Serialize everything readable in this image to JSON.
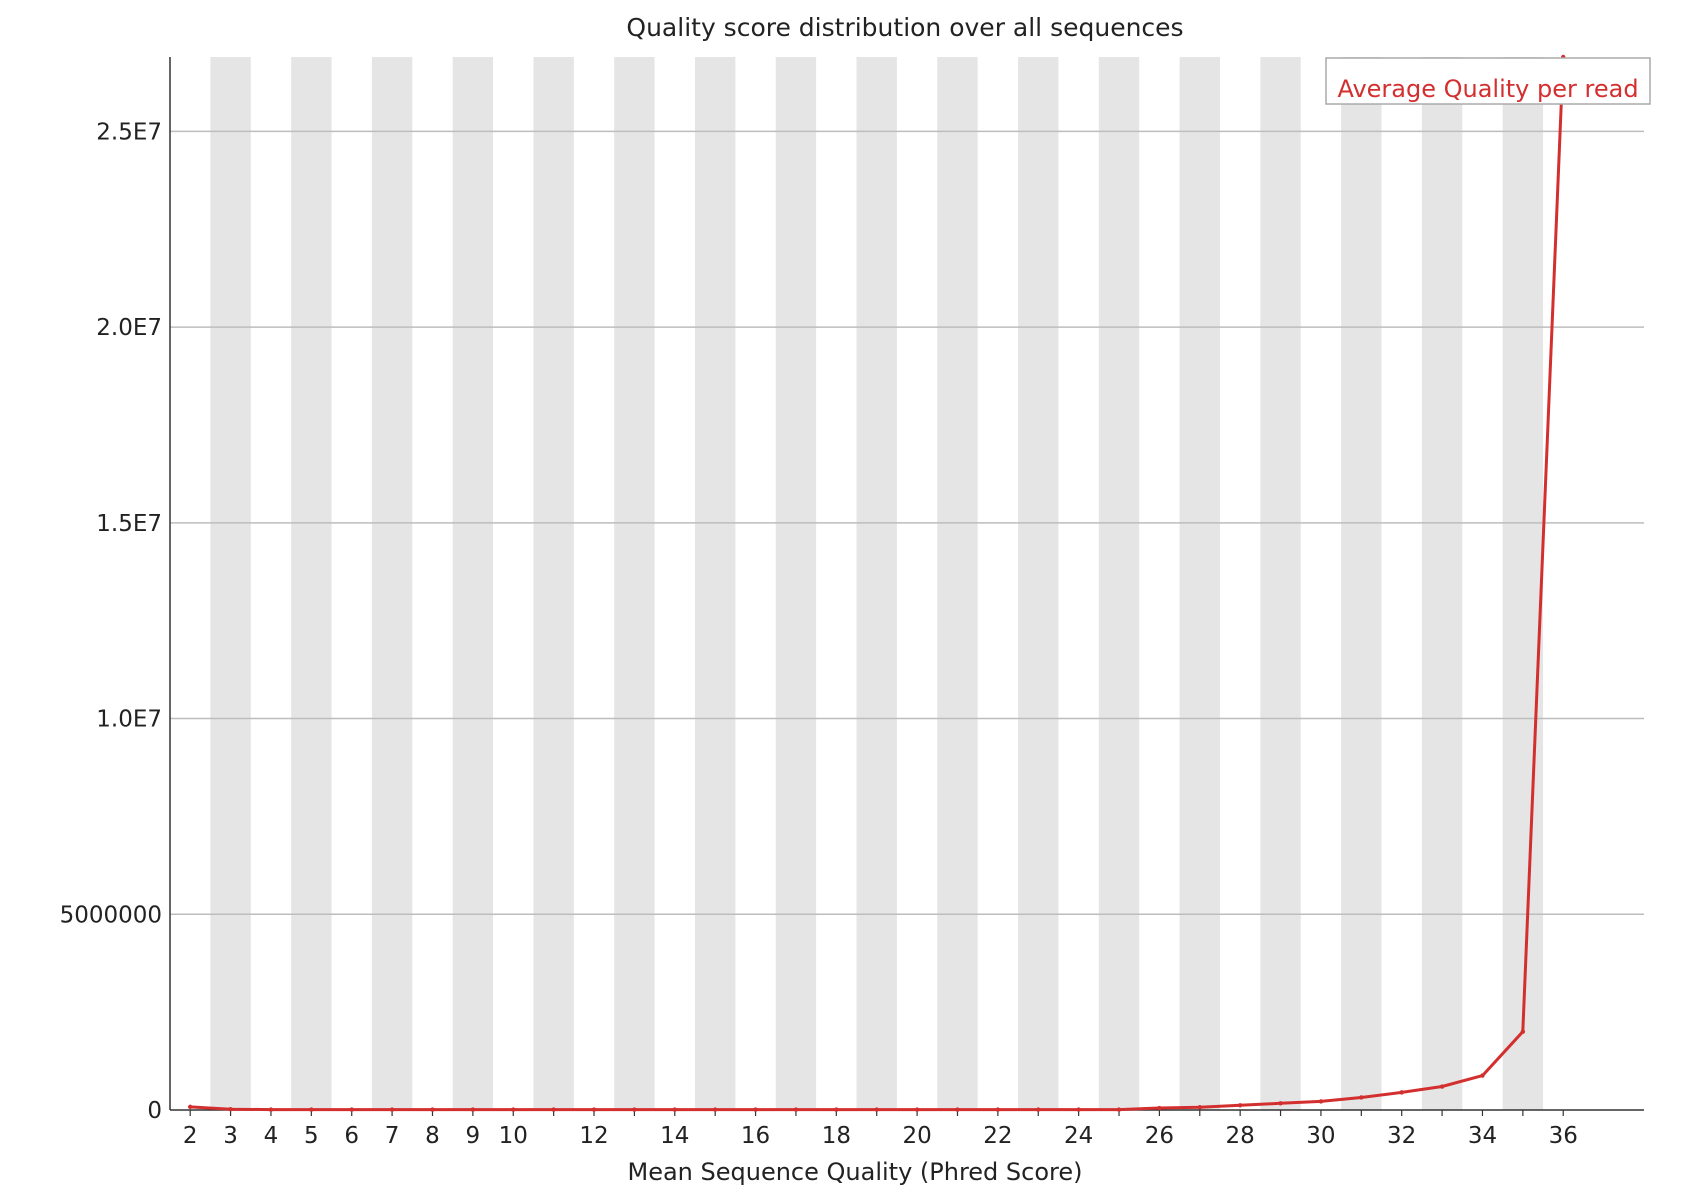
{
  "chart_data": {
    "type": "line",
    "title": "Quality score distribution over all sequences",
    "xlabel": "Mean Sequence Quality (Phred Score)",
    "ylabel": "",
    "x": [
      2,
      3,
      4,
      5,
      6,
      7,
      8,
      9,
      10,
      11,
      12,
      13,
      14,
      15,
      16,
      17,
      18,
      19,
      20,
      21,
      22,
      23,
      24,
      25,
      26,
      27,
      28,
      29,
      30,
      31,
      32,
      33,
      34,
      35,
      36
    ],
    "x_tick_labels": [
      "2",
      "3",
      "4",
      "5",
      "6",
      "7",
      "8",
      "9",
      "10",
      "12",
      "14",
      "16",
      "18",
      "20",
      "22",
      "24",
      "26",
      "28",
      "30",
      "32",
      "34",
      "36"
    ],
    "y_tick_values": [
      0,
      5000000,
      10000000,
      15000000,
      20000000,
      25000000
    ],
    "y_tick_labels": [
      "0",
      "5000000",
      "1.0E7",
      "1.5E7",
      "2.0E7",
      "2.5E7"
    ],
    "xlim": [
      1.5,
      38
    ],
    "ylim": [
      0,
      26900000
    ],
    "series": [
      {
        "name": "Average Quality per read",
        "color": "#d32f2f",
        "values": [
          80000,
          20000,
          10000,
          10000,
          10000,
          10000,
          10000,
          10000,
          10000,
          10000,
          10000,
          10000,
          10000,
          10000,
          10000,
          10000,
          10000,
          10000,
          10000,
          10000,
          10000,
          10000,
          10000,
          10000,
          50000,
          70000,
          120000,
          170000,
          220000,
          320000,
          450000,
          600000,
          880000,
          2000000,
          26900000
        ]
      }
    ],
    "grid": {
      "horizontal": true,
      "alternating_vertical_bands": true,
      "band_color": "#e5e5e5"
    },
    "legend": {
      "position": "top-right"
    }
  }
}
